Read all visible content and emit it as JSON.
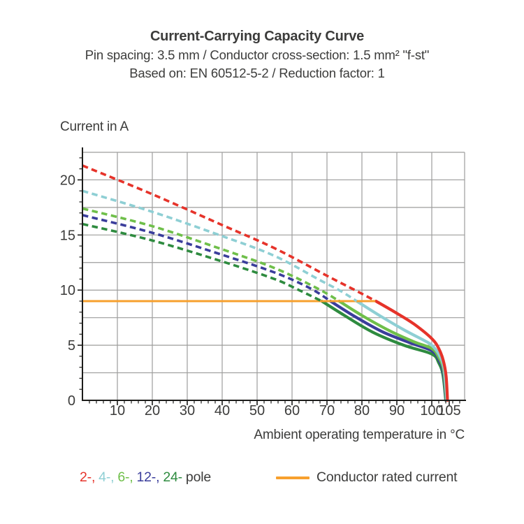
{
  "header": {
    "title": "Current-Carrying Capacity Curve",
    "subtitle_line1": "Pin spacing: 3.5 mm / Conductor cross-section: 1.5 mm² \"f-st\"",
    "subtitle_line2": "Based on: EN 60512-5-2 / Reduction factor: 1"
  },
  "chart_data": {
    "type": "line",
    "title": "Current-Carrying Capacity Curve",
    "ylabel": "Current in A",
    "xlabel": "Ambient operating temperature in °C",
    "xlim": [
      0,
      109.4
    ],
    "ylim": [
      0,
      22.5
    ],
    "x_tick_labels": [
      10,
      20,
      30,
      40,
      50,
      60,
      70,
      80,
      90,
      100,
      105
    ],
    "y_tick_labels": [
      0,
      5,
      10,
      15,
      20
    ],
    "x_gridline_step": 10,
    "y_gridline_step": 2.5,
    "x_minor_tick_step": 2,
    "y_minor_tick_step": 1,
    "grid": true,
    "grid_color": "#9d9d9c",
    "axis_color": "#1d1d1b",
    "text_color": "#3c3c3b",
    "series": [
      {
        "name": "2-pole",
        "color": "#e6332a",
        "dashed": [
          [
            0,
            21.3
          ],
          [
            20,
            18.7
          ],
          [
            40,
            15.9
          ],
          [
            55,
            13.8
          ],
          [
            70,
            11.3
          ],
          [
            78,
            10.0
          ],
          [
            84,
            9.0
          ]
        ],
        "solid": [
          [
            84,
            9.0
          ],
          [
            90,
            7.9
          ],
          [
            95,
            6.9
          ],
          [
            100,
            5.6
          ],
          [
            102,
            4.7
          ],
          [
            103.3,
            3.6
          ],
          [
            104.1,
            2.2
          ],
          [
            104.5,
            0
          ]
        ]
      },
      {
        "name": "4-pole",
        "color": "#8ecfd4",
        "dashed": [
          [
            0,
            19.0
          ],
          [
            20,
            17.1
          ],
          [
            40,
            14.9
          ],
          [
            55,
            13.1
          ],
          [
            68,
            10.9
          ],
          [
            74,
            9.9
          ],
          [
            78.5,
            9.0
          ]
        ],
        "solid": [
          [
            78.5,
            9.0
          ],
          [
            85,
            7.7
          ],
          [
            92,
            6.4
          ],
          [
            98,
            5.4
          ],
          [
            100,
            5.0
          ],
          [
            102,
            4.2
          ],
          [
            103.5,
            2.9
          ],
          [
            104.3,
            0
          ]
        ]
      },
      {
        "name": "6-pole",
        "color": "#6fbf4a",
        "dashed": [
          [
            0,
            17.4
          ],
          [
            20,
            15.8
          ],
          [
            40,
            13.7
          ],
          [
            55,
            12.0
          ],
          [
            67,
            10.2
          ],
          [
            73.5,
            9.0
          ]
        ],
        "solid": [
          [
            73.5,
            9.0
          ],
          [
            80,
            7.7
          ],
          [
            88,
            6.3
          ],
          [
            95,
            5.3
          ],
          [
            100,
            4.7
          ],
          [
            102,
            3.9
          ],
          [
            103.4,
            2.7
          ],
          [
            104.2,
            0
          ]
        ]
      },
      {
        "name": "12-pole",
        "color": "#3a3d9b",
        "dashed": [
          [
            0,
            16.8
          ],
          [
            20,
            15.2
          ],
          [
            40,
            13.2
          ],
          [
            55,
            11.6
          ],
          [
            65,
            10.2
          ],
          [
            71,
            9.0
          ]
        ],
        "solid": [
          [
            71,
            9.0
          ],
          [
            78,
            7.6
          ],
          [
            86,
            6.2
          ],
          [
            94,
            5.2
          ],
          [
            100,
            4.5
          ],
          [
            102,
            3.7
          ],
          [
            103.3,
            2.5
          ],
          [
            104.1,
            0
          ]
        ]
      },
      {
        "name": "24-pole",
        "color": "#2e8b3f",
        "dashed": [
          [
            0,
            16.0
          ],
          [
            20,
            14.5
          ],
          [
            40,
            12.6
          ],
          [
            55,
            11.0
          ],
          [
            62,
            10.0
          ],
          [
            68.5,
            9.0
          ]
        ],
        "solid": [
          [
            68.5,
            9.0
          ],
          [
            75,
            7.7
          ],
          [
            83,
            6.2
          ],
          [
            92,
            5.0
          ],
          [
            100,
            4.2
          ],
          [
            102,
            3.4
          ],
          [
            103.2,
            2.3
          ],
          [
            104,
            0
          ]
        ]
      },
      {
        "name": "Conductor rated current",
        "color": "#f7a02e",
        "rated": [
          [
            0,
            9.0
          ],
          [
            84,
            9.0
          ]
        ]
      }
    ]
  },
  "legend": {
    "poles": [
      {
        "label": "2-,",
        "color": "#e6332a"
      },
      {
        "label": "4-,",
        "color": "#8ecfd4"
      },
      {
        "label": "6-,",
        "color": "#6fbf4a"
      },
      {
        "label": "12-,",
        "color": "#3a3d9b"
      },
      {
        "label": "24-",
        "color": "#2e8b3f"
      }
    ],
    "poles_suffix": "pole",
    "rated_label": "Conductor rated current",
    "rated_color": "#f7a02e"
  }
}
